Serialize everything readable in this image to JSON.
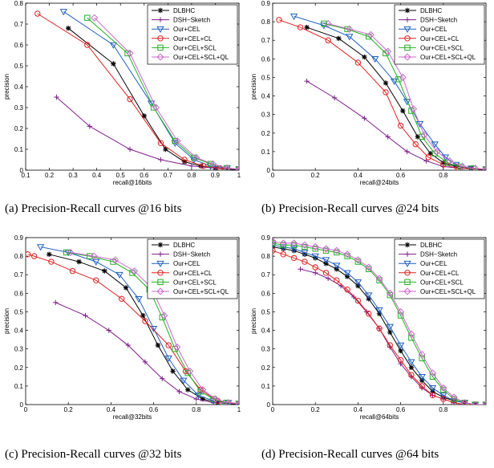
{
  "figure": {
    "captions": [
      "(a) Precision-Recall curves @16 bits",
      "(b) Precision-Recall curves @24 bits",
      "(c) Precision-Recall curves @32 bits",
      "(d) Precision-Recall curves @64 bits"
    ]
  },
  "legend_entries": [
    {
      "name": "DLBHC",
      "color": "#000000",
      "marker": "star"
    },
    {
      "name": "DSH−Sketch",
      "color": "#7f1f8a",
      "marker": "plus"
    },
    {
      "name": "Our+CEL",
      "color": "#1f5fbf",
      "marker": "triangle-down"
    },
    {
      "name": "Our+CEL+CL",
      "color": "#e02020",
      "marker": "circle"
    },
    {
      "name": "Our+CEL+SCL",
      "color": "#22b022",
      "marker": "square"
    },
    {
      "name": "Our+CEL+SCL+QL",
      "color": "#cc66cc",
      "marker": "diamond"
    }
  ],
  "chart_data": [
    {
      "type": "line",
      "xlabel": "recall@16bits",
      "ylabel": "precision",
      "xlim": [
        0.1,
        1.0
      ],
      "ylim": [
        0,
        0.8
      ],
      "xticks": [
        0.1,
        0.2,
        0.3,
        0.4,
        0.5,
        0.6,
        0.7,
        0.8,
        0.9,
        1
      ],
      "yticks": [
        0,
        0.1,
        0.2,
        0.3,
        0.4,
        0.5,
        0.6,
        0.7,
        0.8
      ],
      "legend_position": "top-right",
      "series": [
        {
          "name": "DLBHC",
          "x": [
            0.28,
            0.47,
            0.6,
            0.69,
            0.77,
            0.84,
            0.9,
            0.95,
            1.0
          ],
          "y": [
            0.68,
            0.51,
            0.26,
            0.1,
            0.04,
            0.02,
            0.01,
            0.005,
            0.0
          ]
        },
        {
          "name": "DSH−Sketch",
          "x": [
            0.23,
            0.37,
            0.54,
            0.67,
            0.8,
            0.9,
            1.0
          ],
          "y": [
            0.35,
            0.21,
            0.1,
            0.05,
            0.02,
            0.01,
            0.005
          ]
        },
        {
          "name": "Our+CEL",
          "x": [
            0.26,
            0.47,
            0.63,
            0.73,
            0.81,
            0.88,
            0.95,
            1.0
          ],
          "y": [
            0.76,
            0.6,
            0.32,
            0.13,
            0.05,
            0.02,
            0.01,
            0.005
          ]
        },
        {
          "name": "Our+CEL+CL",
          "x": [
            0.15,
            0.36,
            0.54,
            0.67,
            0.77,
            0.85,
            0.92,
            1.0
          ],
          "y": [
            0.75,
            0.6,
            0.34,
            0.13,
            0.05,
            0.02,
            0.01,
            0.005
          ]
        },
        {
          "name": "Our+CEL+SCL",
          "x": [
            0.36,
            0.53,
            0.64,
            0.73,
            0.81,
            0.88,
            0.95,
            1.0
          ],
          "y": [
            0.73,
            0.56,
            0.3,
            0.14,
            0.06,
            0.03,
            0.01,
            0.005
          ]
        },
        {
          "name": "Our+CEL+SCL+QL",
          "x": [
            0.39,
            0.54,
            0.65,
            0.74,
            0.82,
            0.89,
            0.95,
            1.0
          ],
          "y": [
            0.73,
            0.56,
            0.3,
            0.14,
            0.06,
            0.03,
            0.01,
            0.005
          ]
        }
      ]
    },
    {
      "type": "line",
      "xlabel": "recall@24bits",
      "ylabel": "precision",
      "xlim": [
        0,
        1.0
      ],
      "ylim": [
        0,
        0.9
      ],
      "xticks": [
        0,
        0.2,
        0.4,
        0.6,
        0.8
      ],
      "yticks": [
        0,
        0.1,
        0.2,
        0.3,
        0.4,
        0.5,
        0.6,
        0.7,
        0.8,
        0.9
      ],
      "legend_position": "top-right",
      "series": [
        {
          "name": "DLBHC",
          "x": [
            0.16,
            0.31,
            0.43,
            0.53,
            0.61,
            0.68,
            0.74,
            0.8,
            0.86,
            0.93,
            1.0
          ],
          "y": [
            0.77,
            0.71,
            0.61,
            0.47,
            0.32,
            0.18,
            0.09,
            0.04,
            0.02,
            0.01,
            0.0
          ]
        },
        {
          "name": "DSH−Sketch",
          "x": [
            0.16,
            0.29,
            0.43,
            0.54,
            0.63,
            0.72,
            0.8,
            0.88,
            1.0
          ],
          "y": [
            0.48,
            0.39,
            0.28,
            0.18,
            0.1,
            0.05,
            0.02,
            0.01,
            0.005
          ]
        },
        {
          "name": "Our+CEL",
          "x": [
            0.1,
            0.24,
            0.36,
            0.48,
            0.57,
            0.63,
            0.69,
            0.76,
            0.81,
            0.86,
            0.93,
            1.0
          ],
          "y": [
            0.83,
            0.78,
            0.72,
            0.6,
            0.48,
            0.37,
            0.25,
            0.14,
            0.07,
            0.03,
            0.01,
            0.005
          ]
        },
        {
          "name": "Our+CEL+CL",
          "x": [
            0.03,
            0.13,
            0.26,
            0.4,
            0.53,
            0.6,
            0.67,
            0.73,
            0.8,
            0.87,
            1.0
          ],
          "y": [
            0.81,
            0.77,
            0.7,
            0.58,
            0.42,
            0.24,
            0.14,
            0.07,
            0.03,
            0.01,
            0.005
          ]
        },
        {
          "name": "Our+CEL+SCL",
          "x": [
            0.24,
            0.35,
            0.45,
            0.53,
            0.59,
            0.65,
            0.7,
            0.76,
            0.82,
            0.88,
            0.94,
            1.0
          ],
          "y": [
            0.79,
            0.76,
            0.72,
            0.63,
            0.49,
            0.32,
            0.18,
            0.09,
            0.04,
            0.02,
            0.01,
            0.005
          ]
        },
        {
          "name": "Our+CEL+SCL+QL",
          "x": [
            0.26,
            0.36,
            0.46,
            0.54,
            0.61,
            0.66,
            0.71,
            0.77,
            0.83,
            0.89,
            0.95,
            1.0
          ],
          "y": [
            0.79,
            0.76,
            0.73,
            0.64,
            0.5,
            0.33,
            0.19,
            0.1,
            0.05,
            0.02,
            0.01,
            0.005
          ]
        }
      ]
    },
    {
      "type": "line",
      "xlabel": "recall@32bits",
      "ylabel": "precision",
      "xlim": [
        0,
        1.0
      ],
      "ylim": [
        0,
        0.9
      ],
      "xticks": [
        0,
        0.2,
        0.4,
        0.6,
        0.8,
        1
      ],
      "yticks": [
        0,
        0.1,
        0.2,
        0.3,
        0.4,
        0.5,
        0.6,
        0.7,
        0.8,
        0.9
      ],
      "legend_position": "top-right",
      "series": [
        {
          "name": "DLBHC",
          "x": [
            0.11,
            0.25,
            0.37,
            0.47,
            0.55,
            0.62,
            0.69,
            0.76,
            0.83,
            0.9,
            1.0
          ],
          "y": [
            0.81,
            0.77,
            0.72,
            0.63,
            0.48,
            0.32,
            0.18,
            0.08,
            0.03,
            0.01,
            0.0
          ]
        },
        {
          "name": "DSH−Sketch",
          "x": [
            0.14,
            0.28,
            0.39,
            0.48,
            0.56,
            0.64,
            0.72,
            0.8,
            0.88,
            1.0
          ],
          "y": [
            0.55,
            0.48,
            0.4,
            0.32,
            0.23,
            0.14,
            0.07,
            0.03,
            0.01,
            0.005
          ]
        },
        {
          "name": "Our+CEL",
          "x": [
            0.07,
            0.2,
            0.33,
            0.44,
            0.53,
            0.6,
            0.67,
            0.74,
            0.81,
            0.88,
            0.95,
            1.0
          ],
          "y": [
            0.85,
            0.82,
            0.77,
            0.7,
            0.57,
            0.41,
            0.25,
            0.13,
            0.05,
            0.02,
            0.01,
            0.005
          ]
        },
        {
          "name": "Our+CEL+CL",
          "x": [
            0.01,
            0.04,
            0.12,
            0.22,
            0.33,
            0.45,
            0.56,
            0.67,
            0.75,
            0.82,
            0.9,
            1.0
          ],
          "y": [
            0.81,
            0.8,
            0.77,
            0.72,
            0.67,
            0.57,
            0.45,
            0.32,
            0.18,
            0.08,
            0.02,
            0.005
          ]
        },
        {
          "name": "Our+CEL+SCL",
          "x": [
            0.19,
            0.3,
            0.41,
            0.5,
            0.58,
            0.64,
            0.7,
            0.76,
            0.82,
            0.88,
            0.94,
            1.0
          ],
          "y": [
            0.82,
            0.8,
            0.77,
            0.71,
            0.62,
            0.47,
            0.3,
            0.17,
            0.07,
            0.03,
            0.01,
            0.005
          ]
        },
        {
          "name": "Our+CEL+SCL+QL",
          "x": [
            0.21,
            0.32,
            0.42,
            0.51,
            0.59,
            0.65,
            0.71,
            0.77,
            0.83,
            0.89,
            0.95,
            1.0
          ],
          "y": [
            0.82,
            0.8,
            0.78,
            0.72,
            0.63,
            0.48,
            0.31,
            0.18,
            0.08,
            0.03,
            0.01,
            0.005
          ]
        }
      ]
    },
    {
      "type": "line",
      "xlabel": "recall@64bits",
      "ylabel": "precision",
      "xlim": [
        0,
        1.0
      ],
      "ylim": [
        0,
        0.9
      ],
      "xticks": [
        0,
        0.2,
        0.4,
        0.6,
        0.8
      ],
      "yticks": [
        0,
        0.1,
        0.2,
        0.3,
        0.4,
        0.5,
        0.6,
        0.7,
        0.8,
        0.9
      ],
      "legend_position": "top-right",
      "series": [
        {
          "name": "DLBHC",
          "x": [
            0.0,
            0.05,
            0.1,
            0.15,
            0.2,
            0.25,
            0.3,
            0.35,
            0.4,
            0.45,
            0.5,
            0.55,
            0.6,
            0.65,
            0.7,
            0.75,
            0.8,
            0.85,
            0.9,
            0.95,
            1.0
          ],
          "y": [
            0.85,
            0.84,
            0.83,
            0.81,
            0.79,
            0.76,
            0.73,
            0.69,
            0.64,
            0.57,
            0.49,
            0.39,
            0.29,
            0.2,
            0.13,
            0.07,
            0.04,
            0.02,
            0.01,
            0.0,
            0.0
          ]
        },
        {
          "name": "DSH−Sketch",
          "x": [
            0.13,
            0.2,
            0.26,
            0.32,
            0.38,
            0.44,
            0.5,
            0.55,
            0.6,
            0.65,
            0.7,
            0.75,
            0.8,
            0.85,
            0.9,
            0.95,
            1.0
          ],
          "y": [
            0.73,
            0.71,
            0.68,
            0.64,
            0.58,
            0.5,
            0.41,
            0.31,
            0.22,
            0.15,
            0.09,
            0.05,
            0.03,
            0.01,
            0.0,
            0.0,
            0.0
          ]
        },
        {
          "name": "Our+CEL",
          "x": [
            0.0,
            0.05,
            0.1,
            0.15,
            0.2,
            0.25,
            0.3,
            0.35,
            0.4,
            0.45,
            0.5,
            0.55,
            0.6,
            0.65,
            0.7,
            0.75,
            0.8,
            0.85,
            0.9,
            0.95,
            1.0
          ],
          "y": [
            0.86,
            0.85,
            0.84,
            0.82,
            0.8,
            0.78,
            0.75,
            0.71,
            0.66,
            0.59,
            0.51,
            0.42,
            0.32,
            0.23,
            0.15,
            0.09,
            0.05,
            0.02,
            0.01,
            0.0,
            0.0
          ]
        },
        {
          "name": "Our+CEL+CL",
          "x": [
            0.0,
            0.05,
            0.1,
            0.15,
            0.2,
            0.25,
            0.3,
            0.35,
            0.4,
            0.45,
            0.5,
            0.55,
            0.6,
            0.65,
            0.7,
            0.75,
            0.8,
            0.85,
            0.9,
            0.95,
            1.0
          ],
          "y": [
            0.83,
            0.81,
            0.79,
            0.77,
            0.74,
            0.71,
            0.67,
            0.62,
            0.56,
            0.49,
            0.41,
            0.32,
            0.24,
            0.16,
            0.1,
            0.05,
            0.03,
            0.01,
            0.0,
            0.0,
            0.0
          ]
        },
        {
          "name": "Our+CEL+SCL",
          "x": [
            0.0,
            0.05,
            0.1,
            0.15,
            0.2,
            0.25,
            0.3,
            0.35,
            0.4,
            0.45,
            0.5,
            0.55,
            0.6,
            0.65,
            0.7,
            0.75,
            0.8,
            0.85,
            0.9,
            0.95,
            1.0
          ],
          "y": [
            0.87,
            0.86,
            0.86,
            0.85,
            0.84,
            0.83,
            0.82,
            0.8,
            0.77,
            0.73,
            0.67,
            0.59,
            0.48,
            0.36,
            0.25,
            0.15,
            0.08,
            0.03,
            0.01,
            0.0,
            0.0
          ]
        },
        {
          "name": "Our+CEL+SCL+QL",
          "x": [
            0.0,
            0.05,
            0.1,
            0.15,
            0.2,
            0.25,
            0.3,
            0.35,
            0.4,
            0.45,
            0.5,
            0.55,
            0.6,
            0.65,
            0.7,
            0.75,
            0.8,
            0.85,
            0.9,
            0.95,
            1.0
          ],
          "y": [
            0.88,
            0.87,
            0.87,
            0.86,
            0.85,
            0.84,
            0.83,
            0.81,
            0.78,
            0.74,
            0.68,
            0.6,
            0.5,
            0.38,
            0.27,
            0.17,
            0.09,
            0.04,
            0.01,
            0.0,
            0.0
          ]
        }
      ]
    }
  ]
}
